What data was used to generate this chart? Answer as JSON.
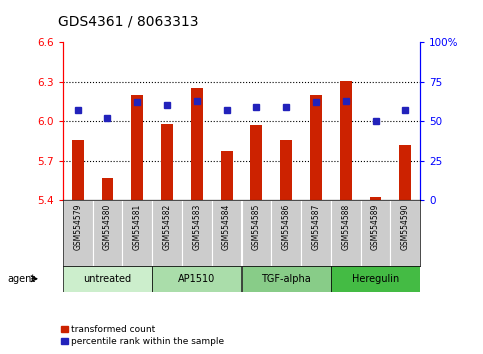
{
  "title": "GDS4361 / 8063313",
  "samples": [
    "GSM554579",
    "GSM554580",
    "GSM554581",
    "GSM554582",
    "GSM554583",
    "GSM554584",
    "GSM554585",
    "GSM554586",
    "GSM554587",
    "GSM554588",
    "GSM554589",
    "GSM554590"
  ],
  "red_values": [
    5.86,
    5.57,
    6.2,
    5.98,
    6.25,
    5.77,
    5.97,
    5.86,
    6.2,
    6.31,
    5.42,
    5.82
  ],
  "blue_values": [
    57,
    52,
    62,
    60,
    63,
    57,
    59,
    59,
    62,
    63,
    50,
    57
  ],
  "ylim_left": [
    5.4,
    6.6
  ],
  "ylim_right": [
    0,
    100
  ],
  "yticks_left": [
    5.4,
    5.7,
    6.0,
    6.3,
    6.6
  ],
  "yticks_right": [
    0,
    25,
    50,
    75,
    100
  ],
  "ytick_labels_left": [
    "5.4",
    "5.7",
    "6.0",
    "6.3",
    "6.6"
  ],
  "ytick_labels_right": [
    "0",
    "25",
    "50",
    "75",
    "100%"
  ],
  "hlines": [
    5.7,
    6.0,
    6.3
  ],
  "bar_color": "#cc2200",
  "dot_color": "#2222bb",
  "agent_groups": [
    {
      "label": "untreated",
      "start": 0,
      "end": 3,
      "color": "#cceecc"
    },
    {
      "label": "AP1510",
      "start": 3,
      "end": 6,
      "color": "#aaddaa"
    },
    {
      "label": "TGF-alpha",
      "start": 6,
      "end": 9,
      "color": "#88cc88"
    },
    {
      "label": "Heregulin",
      "start": 9,
      "end": 12,
      "color": "#44bb44"
    }
  ],
  "gsm_bg_color": "#cccccc",
  "agent_label": "agent",
  "legend_items": [
    {
      "color": "#cc2200",
      "label": "transformed count"
    },
    {
      "color": "#2222bb",
      "label": "percentile rank within the sample"
    }
  ],
  "title_fontsize": 10,
  "tick_fontsize": 7.5,
  "gsm_fontsize": 5.5,
  "agent_fontsize": 7,
  "legend_fontsize": 6.5
}
